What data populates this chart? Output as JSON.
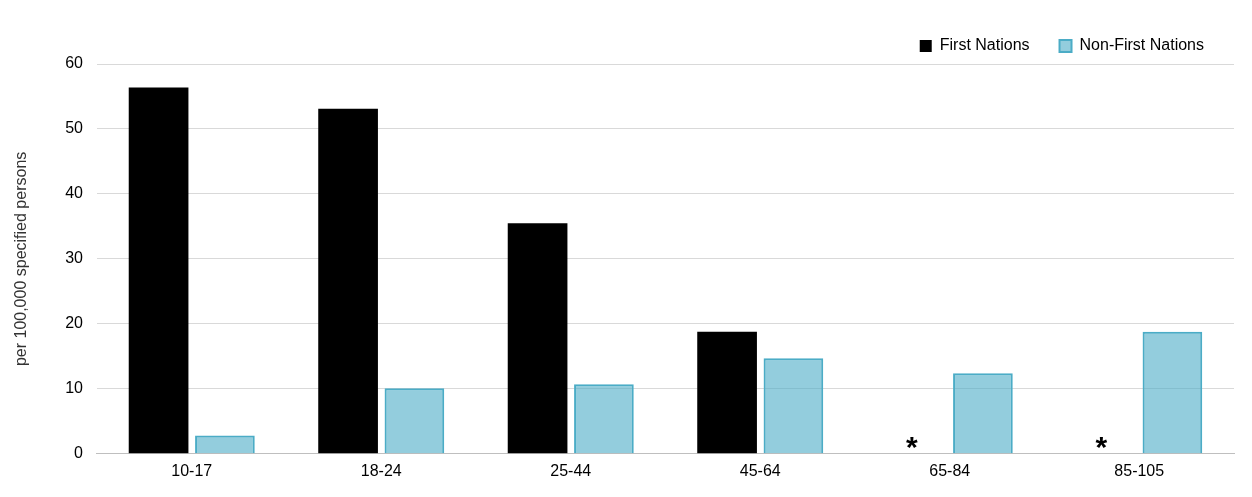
{
  "chart_data": {
    "type": "bar",
    "ylabel": "per 100,000 specified persons",
    "categories": [
      "10-17",
      "18-24",
      "25-44",
      "45-64",
      "65-84",
      "85-105"
    ],
    "series": [
      {
        "name": "First Nations",
        "color": "#000000",
        "values": [
          56.4,
          53.1,
          35.5,
          18.8,
          null,
          null
        ]
      },
      {
        "name": "Non-First Nations",
        "color": "#4bacc6",
        "values": [
          2.8,
          10.1,
          10.7,
          14.7,
          12.4,
          18.8
        ]
      }
    ],
    "ylim": [
      0,
      60
    ],
    "yticks": [
      0,
      10,
      20,
      30,
      40,
      50,
      60
    ],
    "grid": "y",
    "legend": "top right",
    "annotations": [
      {
        "text": "*",
        "x": "65-84",
        "y": 2
      },
      {
        "text": "*",
        "x": "85-105",
        "y": 2
      }
    ]
  }
}
